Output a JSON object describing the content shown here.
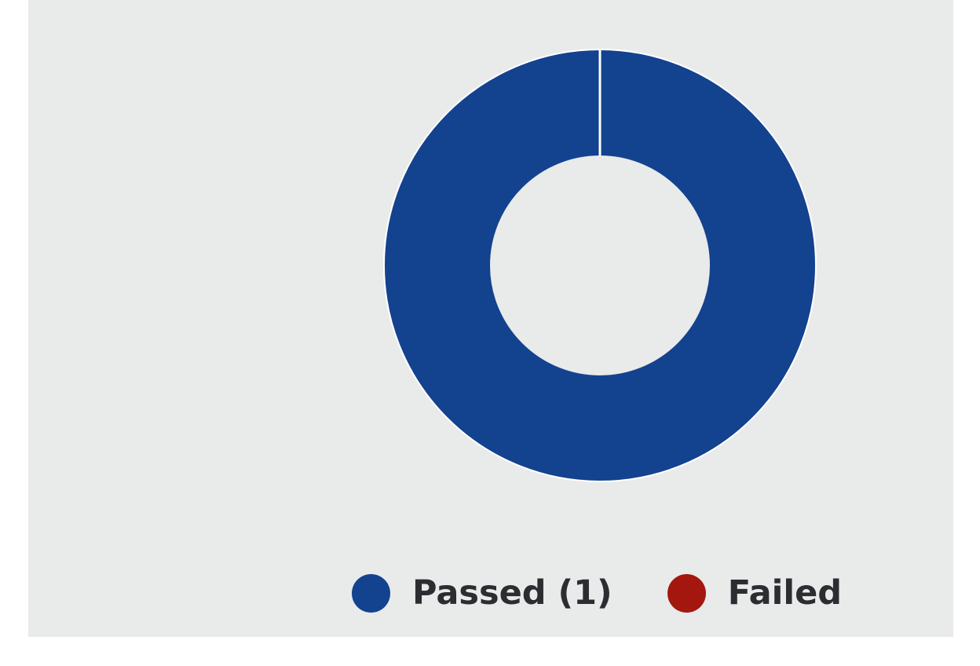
{
  "chart_data": {
    "type": "pie",
    "title": "",
    "donut": true,
    "slices": [
      {
        "label": "Passed (1)",
        "value": 1,
        "color": "#13428f"
      },
      {
        "label": "Failed",
        "value": 0,
        "color": "#a3170e"
      }
    ],
    "legend_position": "bottom"
  },
  "legend": {
    "items": [
      {
        "label": "Passed (1)",
        "color": "#13428f"
      },
      {
        "label": "Failed",
        "color": "#a3170e"
      }
    ]
  }
}
